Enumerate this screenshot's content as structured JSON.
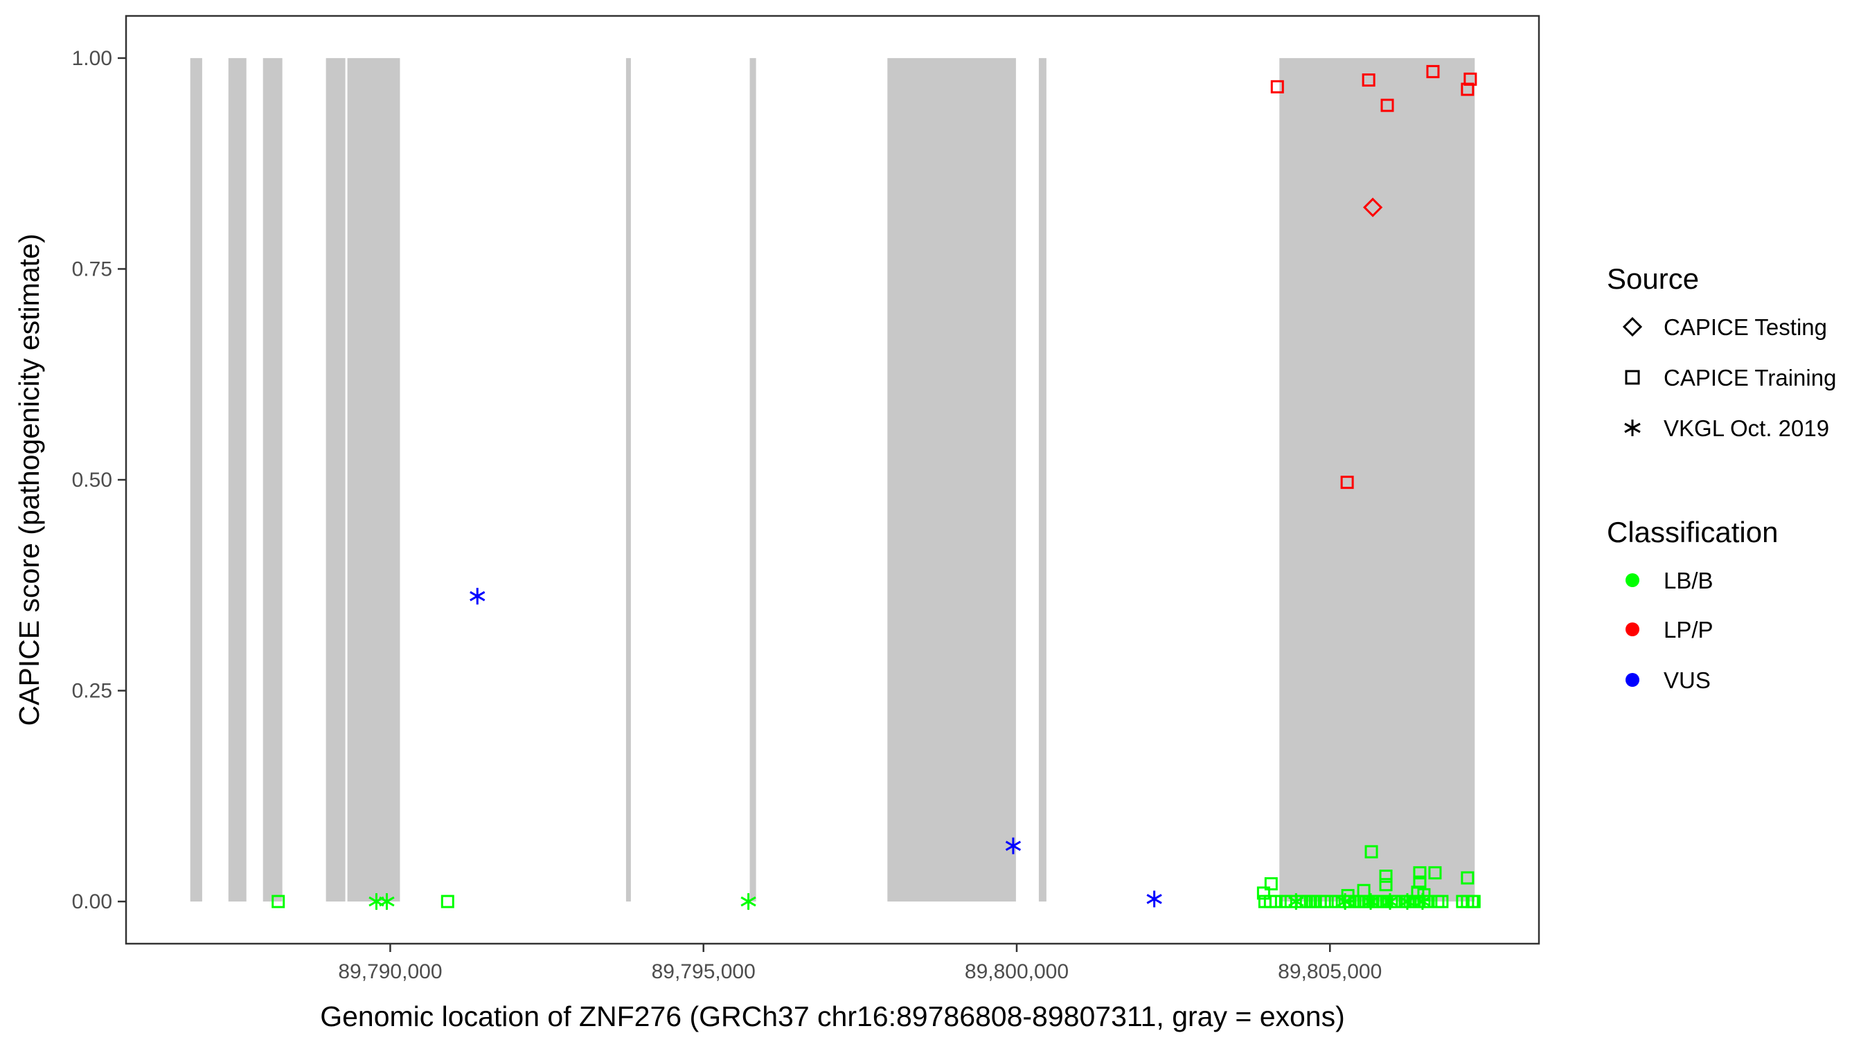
{
  "chart_data": {
    "type": "scatter",
    "xlabel": "Genomic location of ZNF276 (GRCh37 chr16:89786808-89807311, gray = exons)",
    "ylabel": "CAPICE score (pathogenicity estimate)",
    "xlim": [
      89785783,
      89808336
    ],
    "ylim": [
      -0.05,
      1.05
    ],
    "x_ticks": [
      89790000,
      89795000,
      89800000,
      89805000
    ],
    "x_tick_labels": [
      "89,790,000",
      "89,795,000",
      "89,800,000",
      "89,805,000"
    ],
    "y_ticks": [
      0,
      0.25,
      0.5,
      0.75,
      1.0
    ],
    "y_tick_labels": [
      "0.00",
      "0.25",
      "0.50",
      "0.75",
      "1.00"
    ],
    "grid": false,
    "exon_color": "#c8c8c8",
    "exons": [
      [
        89786808,
        89786998
      ],
      [
        89787417,
        89787704
      ],
      [
        89787969,
        89788278
      ],
      [
        89788974,
        89789283
      ],
      [
        89789316,
        89790155
      ],
      [
        89793764,
        89793841
      ],
      [
        89795739,
        89795839
      ],
      [
        89797936,
        89799988
      ],
      [
        89800353,
        89800474
      ],
      [
        89804193,
        89807311
      ]
    ],
    "legend_placement": "right",
    "legend": {
      "source": {
        "title": "Source",
        "items": [
          {
            "label": "CAPICE Testing",
            "shape": "diamond"
          },
          {
            "label": "CAPICE Training",
            "shape": "square"
          },
          {
            "label": "VKGL Oct. 2019",
            "shape": "asterisk"
          }
        ]
      },
      "classification": {
        "title": "Classification",
        "items": [
          {
            "label": "LB/B",
            "color": "#00ff00"
          },
          {
            "label": "LP/P",
            "color": "#ff0000"
          },
          {
            "label": "VUS",
            "color": "#0000ff"
          }
        ]
      }
    },
    "series": [
      {
        "source": "CAPICE Testing",
        "classification": "LP/P",
        "points": [
          [
            89805684,
            0.823
          ]
        ]
      },
      {
        "source": "CAPICE Training",
        "classification": "LP/P",
        "points": [
          [
            89804160,
            0.966
          ],
          [
            89805618,
            0.974
          ],
          [
            89805915,
            0.944
          ],
          [
            89806644,
            0.984
          ],
          [
            89807240,
            0.975
          ],
          [
            89807196,
            0.963
          ],
          [
            89805275,
            0.497
          ]
        ]
      },
      {
        "source": "CAPICE Training",
        "classification": "LB/B",
        "points": [
          [
            89788212,
            0
          ],
          [
            89790916,
            0
          ],
          [
            89803962,
            0
          ],
          [
            89804050,
            0
          ],
          [
            89804139,
            0
          ],
          [
            89804293,
            0
          ],
          [
            89804381,
            0
          ],
          [
            89804547,
            0
          ],
          [
            89804624,
            0
          ],
          [
            89804690,
            0
          ],
          [
            89804767,
            0
          ],
          [
            89804845,
            0
          ],
          [
            89804911,
            0
          ],
          [
            89805021,
            0
          ],
          [
            89805132,
            0
          ],
          [
            89805242,
            0
          ],
          [
            89805319,
            0
          ],
          [
            89805397,
            0
          ],
          [
            89805463,
            0
          ],
          [
            89805540,
            0
          ],
          [
            89805617,
            0
          ],
          [
            89805684,
            0
          ],
          [
            89805761,
            0
          ],
          [
            89805838,
            0
          ],
          [
            89805904,
            0
          ],
          [
            89805981,
            0
          ],
          [
            89806059,
            0
          ],
          [
            89806202,
            0
          ],
          [
            89806280,
            0
          ],
          [
            89806346,
            0
          ],
          [
            89806423,
            0
          ],
          [
            89806500,
            0
          ],
          [
            89806567,
            0
          ],
          [
            89806721,
            0
          ],
          [
            89806787,
            0
          ],
          [
            89807118,
            0
          ],
          [
            89807196,
            0
          ],
          [
            89807273,
            0
          ],
          [
            89807300,
            0
          ],
          [
            89805661,
            0.059
          ],
          [
            89805893,
            0.03
          ],
          [
            89805893,
            0.02
          ],
          [
            89806434,
            0.034
          ],
          [
            89806434,
            0.023
          ],
          [
            89806677,
            0.034
          ],
          [
            89807196,
            0.028
          ],
          [
            89804061,
            0.021
          ],
          [
            89803940,
            0.01
          ],
          [
            89805540,
            0.013
          ],
          [
            89806401,
            0.011
          ],
          [
            89806500,
            0.008
          ],
          [
            89805286,
            0.007
          ]
        ]
      },
      {
        "source": "VKGL Oct. 2019",
        "classification": "LB/B",
        "points": [
          [
            89789779,
            0
          ],
          [
            89789945,
            0
          ],
          [
            89795717,
            0
          ],
          [
            89804459,
            0
          ],
          [
            89805242,
            0
          ],
          [
            89805650,
            0
          ],
          [
            89805959,
            0
          ],
          [
            89806235,
            0
          ],
          [
            89806478,
            0
          ]
        ]
      },
      {
        "source": "VKGL Oct. 2019",
        "classification": "VUS",
        "points": [
          [
            89791391,
            0.362
          ],
          [
            89799944,
            0.066
          ],
          [
            89802196,
            0.003
          ]
        ]
      }
    ]
  }
}
